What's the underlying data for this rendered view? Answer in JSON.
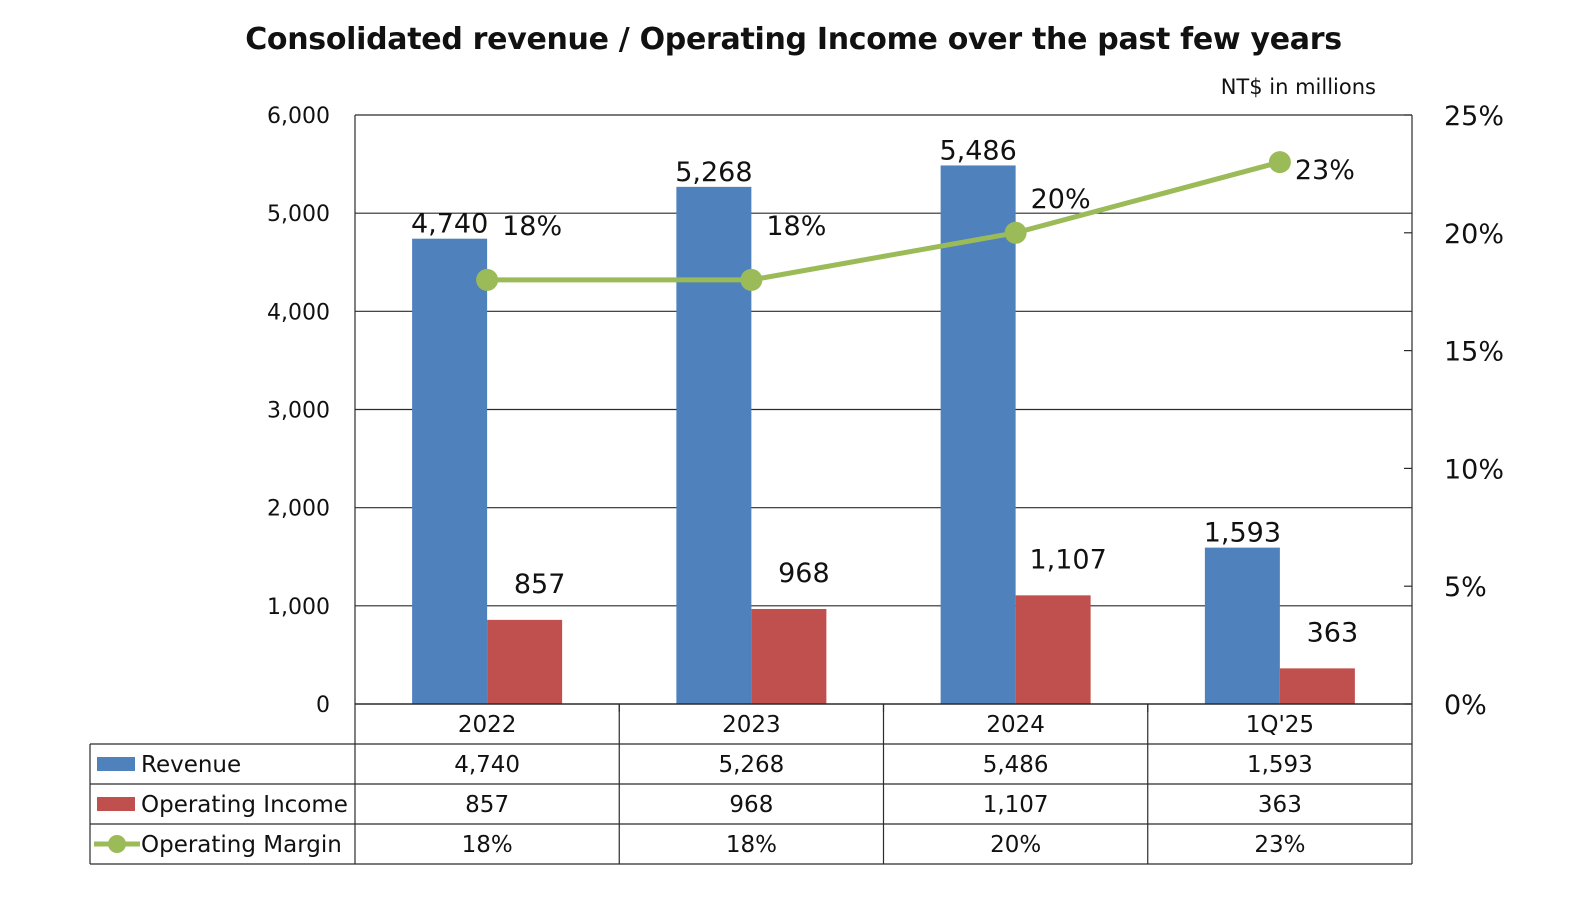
{
  "chart_data": {
    "type": "bar",
    "title": "Consolidated revenue / Operating Income over the past few years",
    "unit_note": "NT$ in millions",
    "categories": [
      "2022",
      "2023",
      "2024",
      "1Q'25"
    ],
    "series": [
      {
        "name": "Revenue",
        "type": "bar",
        "axis": "left",
        "color": "#4F81BD",
        "values": [
          4740,
          5268,
          5486,
          1593
        ],
        "labels": [
          "4,740",
          "5,268",
          "5,486",
          "1,593"
        ]
      },
      {
        "name": "Operating Income",
        "type": "bar",
        "axis": "left",
        "color": "#C0504D",
        "values": [
          857,
          968,
          1107,
          363
        ],
        "labels": [
          "857",
          "968",
          "1,107",
          "363"
        ]
      },
      {
        "name": "Operating Margin",
        "type": "line",
        "axis": "right",
        "color": "#9BBB59",
        "values": [
          18,
          18,
          20,
          23
        ],
        "labels": [
          "18%",
          "18%",
          "20%",
          "23%"
        ]
      }
    ],
    "y_left": {
      "min": 0,
      "max": 6000,
      "ticks": [
        "0",
        "1,000",
        "2,000",
        "3,000",
        "4,000",
        "5,000",
        "6,000"
      ]
    },
    "y_right": {
      "min": 0,
      "max": 25,
      "ticks": [
        "0%",
        "5%",
        "10%",
        "15%",
        "20%",
        "25%"
      ]
    },
    "grid": true,
    "legend": "data-table-below"
  }
}
